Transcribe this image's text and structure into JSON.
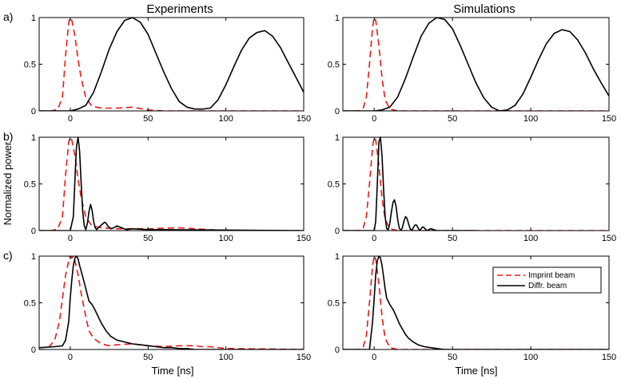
{
  "figure": {
    "ylabel": "Normalized power",
    "column_titles": [
      "Experiments",
      "Simulations"
    ],
    "row_labels": [
      "a)",
      "b)",
      "c)"
    ],
    "xlabel": "Time [ns]",
    "legend": {
      "entries": [
        {
          "label": "Imprint beam",
          "color": "#e8191a",
          "style": "dashed"
        },
        {
          "label": "Diffr. beam",
          "color": "#000000",
          "style": "solid"
        }
      ],
      "placement": "top-right of panel c) simulations"
    }
  },
  "chart_data": [
    {
      "type": "line",
      "panel": "a) Experiments",
      "xlim": [
        -20,
        150
      ],
      "ylim": [
        0,
        1
      ],
      "xticks": [
        0,
        50,
        100,
        150
      ],
      "yticks": [
        0,
        0.5,
        1
      ],
      "series": [
        {
          "color": "#e8191a",
          "style": "dashed",
          "x": [
            -20,
            -12,
            -8,
            -5,
            -3,
            -1,
            0,
            1,
            3,
            5,
            7,
            10,
            14,
            20,
            30,
            40,
            50,
            60,
            70,
            80,
            100,
            150
          ],
          "y": [
            0,
            0,
            0.02,
            0.15,
            0.6,
            0.95,
            1.0,
            0.97,
            0.8,
            0.55,
            0.35,
            0.14,
            0.05,
            0.03,
            0.03,
            0.04,
            0.01,
            0,
            0,
            0,
            0,
            0
          ]
        },
        {
          "color": "#000000",
          "style": "solid",
          "x": [
            -20,
            0,
            5,
            10,
            15,
            20,
            25,
            30,
            35,
            40,
            45,
            50,
            55,
            60,
            65,
            70,
            75,
            80,
            85,
            90,
            95,
            100,
            105,
            110,
            115,
            120,
            125,
            130,
            135,
            140,
            145,
            150
          ],
          "y": [
            0,
            0,
            0.02,
            0.06,
            0.2,
            0.42,
            0.66,
            0.85,
            0.97,
            1.0,
            0.95,
            0.82,
            0.62,
            0.42,
            0.24,
            0.1,
            0.04,
            0.02,
            0.02,
            0.03,
            0.12,
            0.28,
            0.47,
            0.65,
            0.78,
            0.84,
            0.86,
            0.8,
            0.68,
            0.52,
            0.36,
            0.2
          ]
        }
      ]
    },
    {
      "type": "line",
      "panel": "a) Simulations",
      "xlim": [
        -20,
        150
      ],
      "ylim": [
        0,
        1
      ],
      "xticks": [
        0,
        50,
        100,
        150
      ],
      "yticks": [
        0,
        0.5,
        1
      ],
      "series": [
        {
          "color": "#e8191a",
          "style": "dashed",
          "x": [
            -20,
            -10,
            -7,
            -5,
            -3,
            -1,
            0,
            1,
            3,
            5,
            7,
            10,
            15,
            150
          ],
          "y": [
            0,
            0,
            0.03,
            0.15,
            0.5,
            0.9,
            1.0,
            0.97,
            0.7,
            0.35,
            0.12,
            0.02,
            0,
            0
          ]
        },
        {
          "color": "#000000",
          "style": "solid",
          "x": [
            -20,
            0,
            5,
            10,
            15,
            20,
            25,
            30,
            35,
            40,
            45,
            50,
            55,
            60,
            65,
            70,
            75,
            80,
            85,
            90,
            95,
            100,
            105,
            110,
            115,
            120,
            125,
            130,
            135,
            140,
            145,
            150
          ],
          "y": [
            0,
            0,
            0.01,
            0.04,
            0.15,
            0.35,
            0.58,
            0.8,
            0.94,
            1.0,
            0.98,
            0.88,
            0.7,
            0.5,
            0.3,
            0.14,
            0.04,
            0.0,
            0.01,
            0.06,
            0.18,
            0.36,
            0.55,
            0.72,
            0.83,
            0.87,
            0.85,
            0.76,
            0.62,
            0.45,
            0.3,
            0.16
          ]
        }
      ]
    },
    {
      "type": "line",
      "panel": "b) Experiments",
      "xlim": [
        -20,
        150
      ],
      "ylim": [
        0,
        1
      ],
      "xticks": [
        0,
        50,
        100,
        150
      ],
      "yticks": [
        0,
        0.5,
        1
      ],
      "series": [
        {
          "color": "#e8191a",
          "style": "dashed",
          "x": [
            -20,
            -12,
            -8,
            -5,
            -3,
            -1,
            0,
            1,
            3,
            5,
            7,
            10,
            14,
            20,
            30,
            50,
            70,
            80,
            100,
            150
          ],
          "y": [
            0,
            0,
            0.02,
            0.15,
            0.6,
            0.95,
            1.0,
            0.97,
            0.8,
            0.55,
            0.35,
            0.14,
            0.05,
            0.03,
            0.02,
            0.02,
            0.03,
            0.02,
            0,
            0
          ]
        },
        {
          "color": "#000000",
          "style": "solid",
          "x": [
            -20,
            0,
            2,
            3,
            4,
            5,
            6,
            7,
            8,
            9,
            10,
            11,
            12,
            13,
            14,
            15,
            16,
            17,
            18,
            20,
            22,
            23,
            24,
            26,
            28,
            30,
            33,
            36,
            40,
            50,
            150
          ],
          "y": [
            0,
            0,
            0.15,
            0.55,
            0.9,
            1.0,
            0.85,
            0.5,
            0.2,
            0.05,
            0.01,
            0.08,
            0.2,
            0.28,
            0.22,
            0.1,
            0.03,
            0.01,
            0.03,
            0.06,
            0.09,
            0.08,
            0.05,
            0.02,
            0.03,
            0.05,
            0.03,
            0.01,
            0.02,
            0.01,
            0
          ]
        }
      ]
    },
    {
      "type": "line",
      "panel": "b) Simulations",
      "xlim": [
        -20,
        150
      ],
      "ylim": [
        0,
        1
      ],
      "xticks": [
        0,
        50,
        100,
        150
      ],
      "yticks": [
        0,
        0.5,
        1
      ],
      "series": [
        {
          "color": "#e8191a",
          "style": "dashed",
          "x": [
            -20,
            -10,
            -7,
            -5,
            -3,
            -1,
            0,
            1,
            3,
            5,
            7,
            10,
            15,
            150
          ],
          "y": [
            0,
            0,
            0.03,
            0.15,
            0.5,
            0.9,
            1.0,
            0.97,
            0.7,
            0.35,
            0.12,
            0.02,
            0,
            0
          ]
        },
        {
          "color": "#000000",
          "style": "solid",
          "x": [
            -20,
            0,
            1,
            2,
            3,
            4,
            5,
            6,
            7,
            8,
            9,
            10,
            11,
            12,
            13,
            14,
            15,
            16,
            17,
            18,
            19,
            20,
            21,
            22,
            23,
            24,
            25,
            26,
            27,
            29,
            30,
            31,
            32,
            33,
            34,
            36,
            38,
            40,
            45,
            60,
            65
          ],
          "y": [
            0,
            0,
            0.1,
            0.5,
            0.95,
            1.0,
            0.8,
            0.45,
            0.15,
            0.02,
            0.01,
            0.08,
            0.2,
            0.3,
            0.33,
            0.26,
            0.12,
            0.03,
            0.0,
            0.03,
            0.1,
            0.15,
            0.13,
            0.07,
            0.02,
            0.0,
            0.03,
            0.06,
            0.06,
            0.0,
            0.02,
            0.04,
            0.03,
            0.01,
            0.0,
            0.02,
            0.01,
            0.0,
            0.0,
            0,
            0
          ]
        }
      ]
    },
    {
      "type": "line",
      "panel": "c) Experiments",
      "xlim": [
        -20,
        150
      ],
      "ylim": [
        0,
        1
      ],
      "xticks": [
        0,
        50,
        100,
        150
      ],
      "yticks": [
        0,
        0.5,
        1
      ],
      "series": [
        {
          "color": "#e8191a",
          "style": "dashed",
          "x": [
            -20,
            -15,
            -10,
            -7,
            -5,
            -3,
            -1,
            0,
            1,
            2,
            3,
            5,
            7,
            10,
            12,
            15,
            20,
            25,
            30,
            40,
            50,
            60,
            70,
            80,
            85,
            90,
            100,
            150
          ],
          "y": [
            0,
            0,
            0.1,
            0.3,
            0.55,
            0.8,
            0.95,
            1.0,
            0.98,
            1.0,
            0.95,
            0.8,
            0.6,
            0.35,
            0.2,
            0.12,
            0.06,
            0.04,
            0.05,
            0.06,
            0.04,
            0.03,
            0.04,
            0.04,
            0.03,
            0.03,
            0.01,
            0
          ]
        },
        {
          "color": "#000000",
          "style": "solid",
          "x": [
            -20,
            -10,
            -5,
            -3,
            -1,
            0,
            1,
            2,
            3,
            4,
            5,
            6,
            8,
            10,
            12,
            14,
            16,
            18,
            20,
            23,
            26,
            30,
            35,
            40,
            45,
            50,
            55,
            60,
            65,
            70,
            75,
            80,
            150
          ],
          "y": [
            0.02,
            0.03,
            0.04,
            0.1,
            0.3,
            0.55,
            0.75,
            0.9,
            0.98,
            1.0,
            0.97,
            0.9,
            0.78,
            0.65,
            0.52,
            0.48,
            0.42,
            0.35,
            0.28,
            0.2,
            0.14,
            0.1,
            0.08,
            0.06,
            0.05,
            0.04,
            0.03,
            0.02,
            0.02,
            0.01,
            0.01,
            0.0,
            0
          ]
        }
      ]
    },
    {
      "type": "line",
      "panel": "c) Simulations",
      "xlim": [
        -20,
        150
      ],
      "ylim": [
        0,
        1
      ],
      "xticks": [
        0,
        50,
        100,
        150
      ],
      "yticks": [
        0,
        0.5,
        1
      ],
      "series": [
        {
          "color": "#e8191a",
          "style": "dashed",
          "x": [
            -20,
            -10,
            -7,
            -5,
            -3,
            -1,
            0,
            1,
            3,
            5,
            7,
            10,
            15,
            150
          ],
          "y": [
            0,
            0,
            0.03,
            0.15,
            0.5,
            0.9,
            1.0,
            0.97,
            0.7,
            0.35,
            0.12,
            0.02,
            0,
            0
          ]
        },
        {
          "color": "#000000",
          "style": "solid",
          "x": [
            -20,
            -3,
            -1,
            0,
            1,
            2,
            3,
            4,
            5,
            6,
            7,
            8,
            10,
            12,
            14,
            16,
            18,
            20,
            22,
            25,
            28,
            32,
            36,
            40,
            45,
            50,
            150
          ],
          "y": [
            0,
            0,
            0.3,
            0.55,
            0.8,
            0.95,
            1.0,
            0.98,
            0.9,
            0.78,
            0.65,
            0.55,
            0.48,
            0.43,
            0.36,
            0.28,
            0.22,
            0.16,
            0.12,
            0.08,
            0.05,
            0.03,
            0.02,
            0.01,
            0.0,
            0,
            0
          ]
        }
      ]
    }
  ]
}
